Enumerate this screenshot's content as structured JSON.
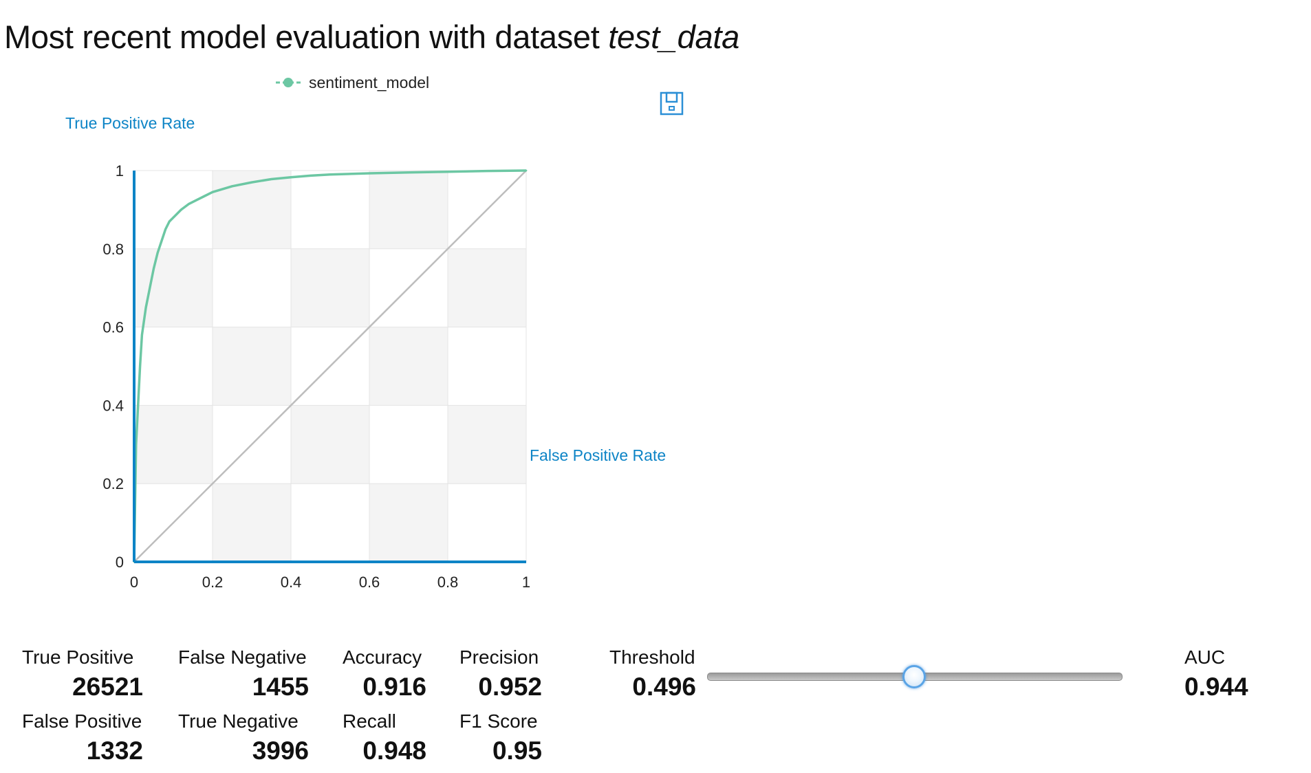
{
  "title": {
    "prefix": "Most recent model evaluation with dataset ",
    "dataset": "test_data"
  },
  "colors": {
    "series": "#6cc7a3",
    "axis": "#0d84c6",
    "diagonal": "#bdbdbd",
    "grid_band": "#f4f4f4",
    "grid_line": "#e4e4e4"
  },
  "icons": {
    "save": "save-icon"
  },
  "chart_data": {
    "type": "line",
    "title": "",
    "xlabel": "False Positive Rate",
    "ylabel": "True Positive Rate",
    "xlim": [
      0,
      1
    ],
    "ylim": [
      0,
      1
    ],
    "x_ticks": [
      0,
      0.2,
      0.4,
      0.6,
      0.8,
      1
    ],
    "y_ticks": [
      0,
      0.2,
      0.4,
      0.6,
      0.8,
      1
    ],
    "x_tick_labels": [
      "0",
      "0.2",
      "0.4",
      "0.6",
      "0.8",
      "1"
    ],
    "y_tick_labels": [
      "0",
      "0.2",
      "0.4",
      "0.6",
      "0.8",
      "1"
    ],
    "legend_position": "top",
    "grid": true,
    "series": [
      {
        "name": "sentiment_model",
        "x": [
          0,
          0.005,
          0.01,
          0.015,
          0.02,
          0.03,
          0.04,
          0.05,
          0.06,
          0.07,
          0.08,
          0.09,
          0.1,
          0.12,
          0.14,
          0.16,
          0.18,
          0.2,
          0.25,
          0.3,
          0.35,
          0.4,
          0.45,
          0.5,
          0.6,
          0.7,
          0.8,
          0.9,
          1.0
        ],
        "y": [
          0,
          0.3,
          0.4,
          0.5,
          0.58,
          0.65,
          0.7,
          0.75,
          0.79,
          0.82,
          0.85,
          0.87,
          0.88,
          0.9,
          0.915,
          0.925,
          0.935,
          0.945,
          0.96,
          0.97,
          0.978,
          0.983,
          0.987,
          0.99,
          0.993,
          0.995,
          0.997,
          0.999,
          1.0
        ]
      },
      {
        "name": "",
        "role": "random-baseline",
        "x": [
          0,
          1
        ],
        "y": [
          0,
          1
        ]
      }
    ]
  },
  "metrics": {
    "true_positive": {
      "label": "True Positive",
      "value": "26521"
    },
    "false_negative": {
      "label": "False Negative",
      "value": "1455"
    },
    "accuracy": {
      "label": "Accuracy",
      "value": "0.916"
    },
    "precision": {
      "label": "Precision",
      "value": "0.952"
    },
    "threshold": {
      "label": "Threshold",
      "value": "0.496"
    },
    "auc": {
      "label": "AUC",
      "value": "0.944"
    },
    "false_positive": {
      "label": "False Positive",
      "value": "1332"
    },
    "true_negative": {
      "label": "True Negative",
      "value": "3996"
    },
    "recall": {
      "label": "Recall",
      "value": "0.948"
    },
    "f1_score": {
      "label": "F1 Score",
      "value": "0.95"
    }
  },
  "slider": {
    "value": 0.496,
    "min": 0,
    "max": 1
  }
}
